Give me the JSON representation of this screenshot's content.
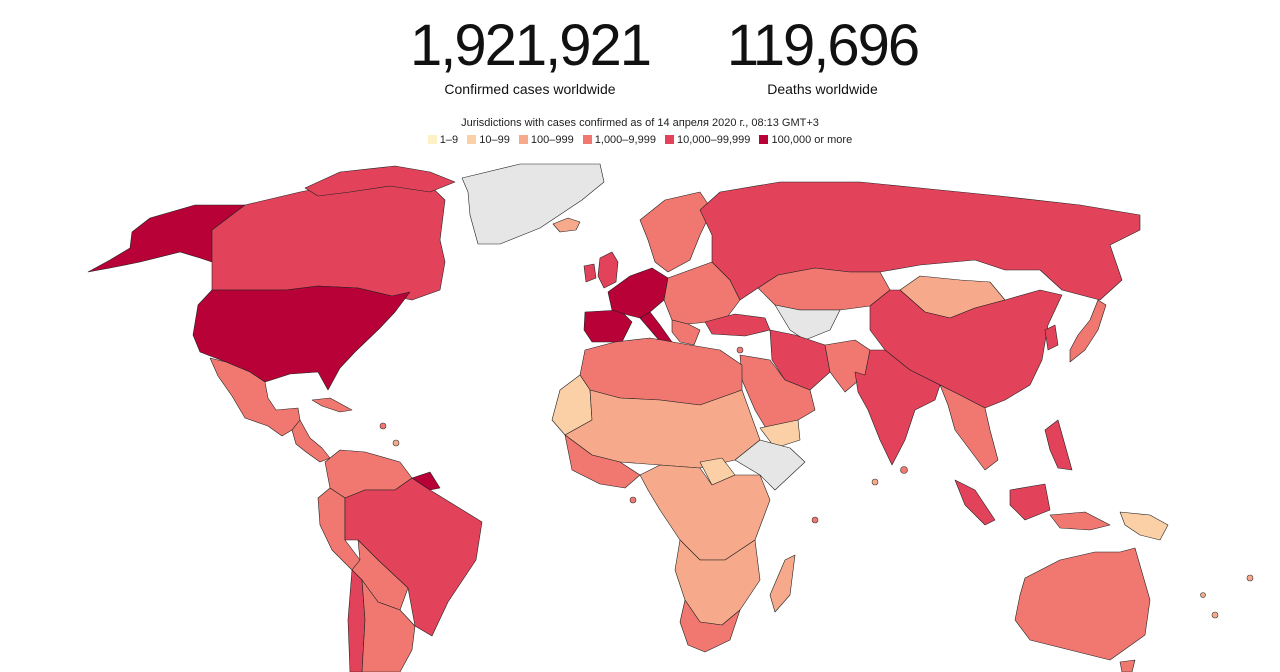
{
  "stats": {
    "cases": {
      "value": "1,921,921",
      "label": "Confirmed cases worldwide"
    },
    "deaths": {
      "value": "119,696",
      "label": "Deaths worldwide"
    }
  },
  "subtitle": "Jurisdictions with cases confirmed as of 14 апреля 2020 г., 08:13 GMT+3",
  "legend": [
    {
      "label": "1–9",
      "color": "#fdf2c6"
    },
    {
      "label": "10–99",
      "color": "#fbd0a6"
    },
    {
      "label": "100–999",
      "color": "#f7a98b"
    },
    {
      "label": "1,000–9,999",
      "color": "#f07870"
    },
    {
      "label": "10,000–99,999",
      "color": "#e3435a"
    },
    {
      "label": "100,000 or more",
      "color": "#b80136"
    }
  ],
  "no_data_color": "#e6e6e6"
}
